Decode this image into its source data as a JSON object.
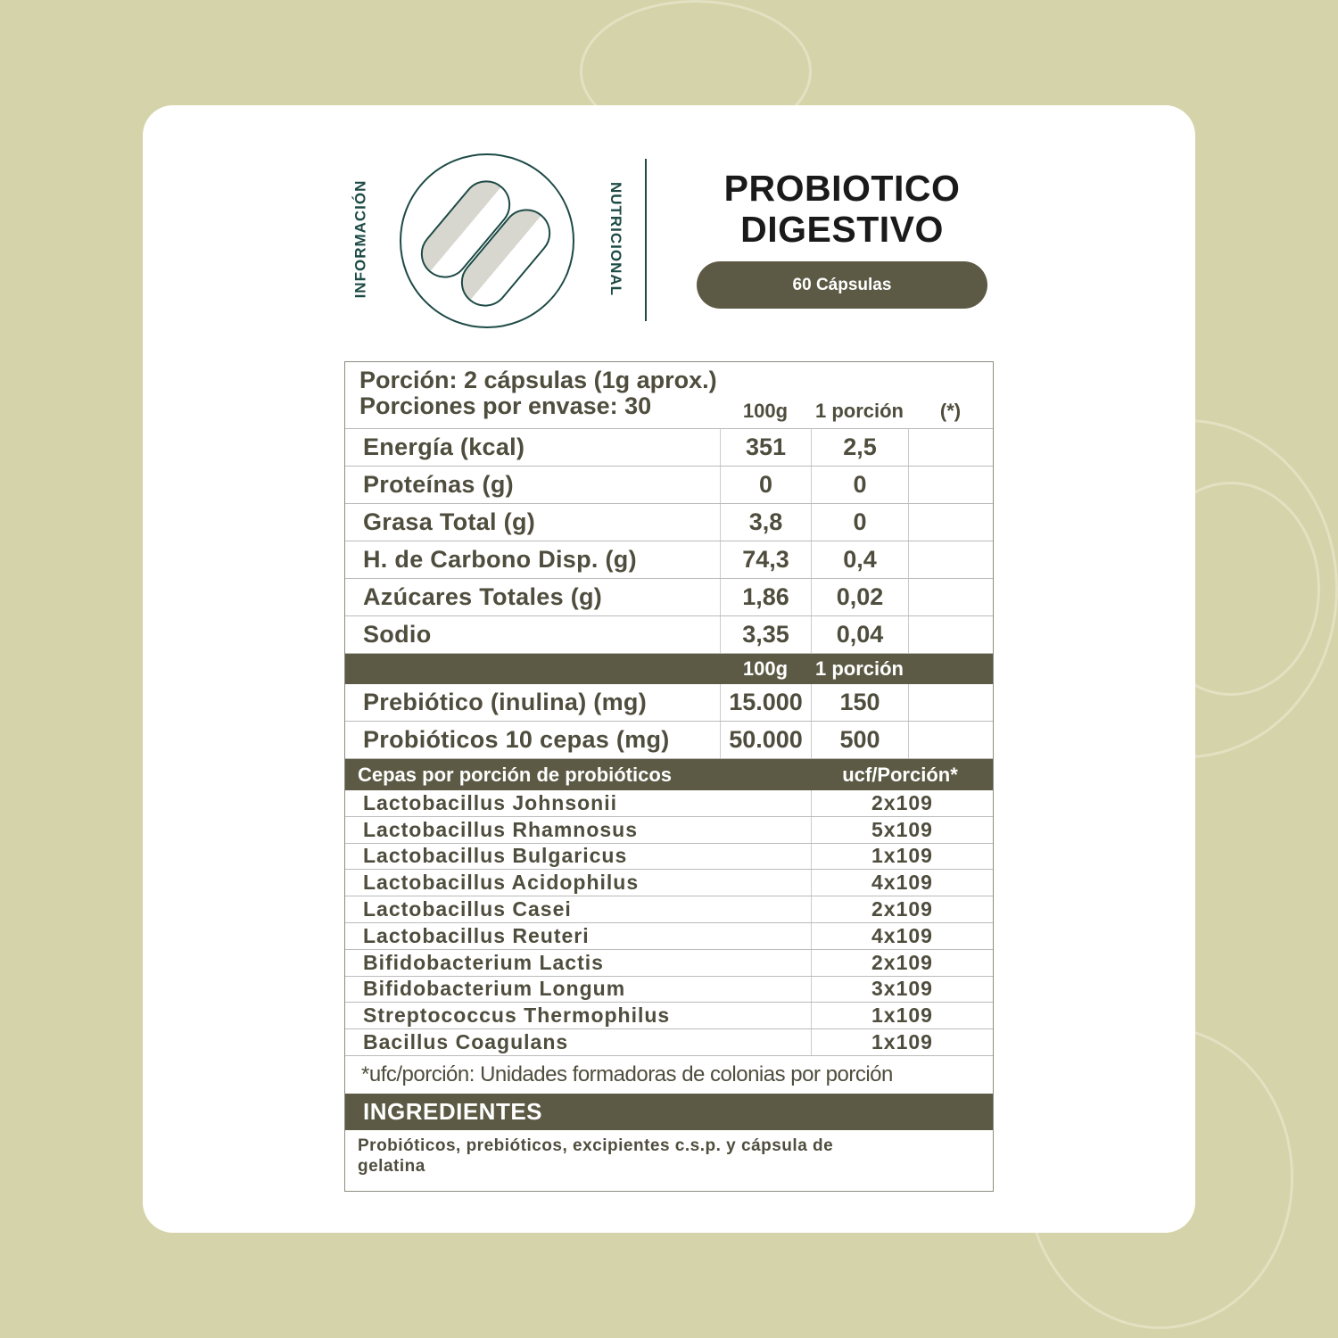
{
  "header": {
    "vertical_left": "INFORMACIÓN",
    "vertical_right": "NUTRICIONAL",
    "title_line1": "PROBIOTICO",
    "title_line2": "DIGESTIVO",
    "badge": "60 Cápsulas",
    "icon": "capsules-icon"
  },
  "table": {
    "portion": "Porción: 2 cápsulas (1g aprox.)",
    "servings": "Porciones por envase: 30",
    "col_100g": "100g",
    "col_portion": "1 porción",
    "col_star": "(*)",
    "nutrients": [
      {
        "label": "Energía (kcal)",
        "g100": "351",
        "portion": "2,5"
      },
      {
        "label": "Proteínas (g)",
        "g100": "0",
        "portion": "0"
      },
      {
        "label": "Grasa Total (g)",
        "g100": "3,8",
        "portion": "0"
      },
      {
        "label": "H. de Carbono Disp. (g)",
        "g100": "74,3",
        "portion": "0,4"
      },
      {
        "label": "Azúcares Totales (g)",
        "g100": "1,86",
        "portion": "0,02"
      },
      {
        "label": "Sodio",
        "g100": "3,35",
        "portion": "0,04"
      }
    ],
    "sub_100g": "100g",
    "sub_portion": "1 porción",
    "extras": [
      {
        "label": "Prebiótico (inulina) (mg)",
        "g100": "15.000",
        "portion": "150"
      },
      {
        "label": "Probióticos 10 cepas (mg)",
        "g100": "50.000",
        "portion": "500"
      }
    ],
    "strains_header": "Cepas por porción de probióticos",
    "strains_unit": "ucf/Porción*",
    "strains": [
      {
        "name": "Lactobacillus Johnsonii",
        "ufc": "2x109"
      },
      {
        "name": "Lactobacillus Rhamnosus",
        "ufc": "5x109"
      },
      {
        "name": "Lactobacillus Bulgaricus",
        "ufc": "1x109"
      },
      {
        "name": "Lactobacillus Acidophilus",
        "ufc": "4x109"
      },
      {
        "name": "Lactobacillus Casei",
        "ufc": "2x109"
      },
      {
        "name": "Lactobacillus Reuteri",
        "ufc": "4x109"
      },
      {
        "name": "Bifidobacterium Lactis",
        "ufc": "2x109"
      },
      {
        "name": "Bifidobacterium Longum",
        "ufc": "3x109"
      },
      {
        "name": "Streptococcus Thermophilus",
        "ufc": "1x109"
      },
      {
        "name": "Bacillus Coagulans",
        "ufc": "1x109"
      }
    ],
    "footnote": "*ufc/porción: Unidades formadoras de colonias por porción",
    "ingredients_title": "INGREDIENTES",
    "ingredients": "Probióticos, prebióticos, excipientes c.s.p. y cápsula de gelatina"
  },
  "colors": {
    "background": "#d4d3a9",
    "accent": "#5c5a44",
    "icon": "#1d4a45"
  }
}
